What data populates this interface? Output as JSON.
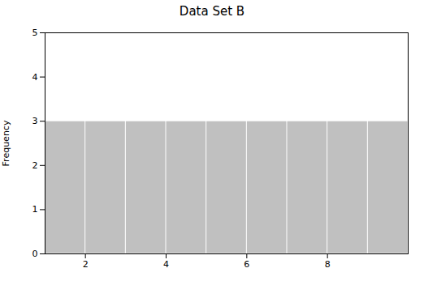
{
  "chart_data": {
    "type": "histogram",
    "title": "Data Set B",
    "ylabel": "Frequency",
    "bins": [
      1,
      2,
      3,
      4,
      5,
      6,
      7,
      8,
      9,
      10
    ],
    "values": [
      3,
      3,
      3,
      3,
      3,
      3,
      3,
      3,
      3
    ],
    "color": "#c0c0c0",
    "xlim": [
      1,
      10
    ],
    "xticks": [
      2,
      4,
      6,
      8
    ],
    "ylim": [
      0,
      5
    ],
    "yticks": [
      0,
      1,
      2,
      3,
      4,
      5
    ]
  }
}
